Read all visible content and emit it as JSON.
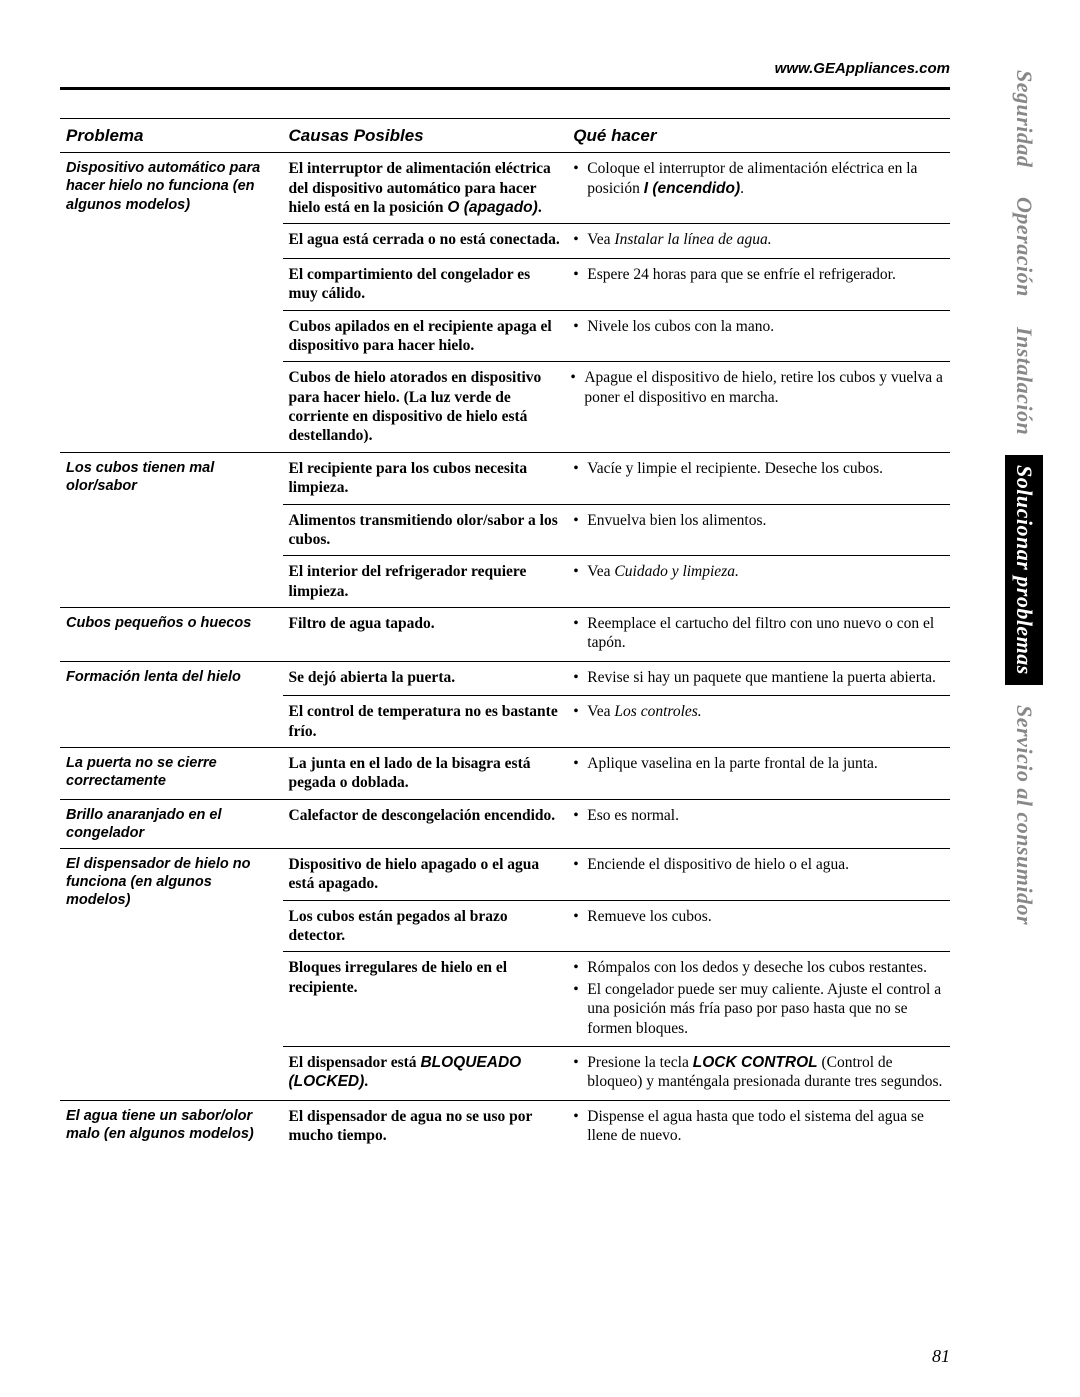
{
  "url": "www.GEAppliances.com",
  "page_number": "81",
  "side_tabs": [
    {
      "label": "Seguridad",
      "style": "gray"
    },
    {
      "label": "Operación",
      "style": "gray"
    },
    {
      "label": "Instalación",
      "style": "gray"
    },
    {
      "label": "Solucionar problemas",
      "style": "inverse"
    },
    {
      "label": "Servicio al consumidor",
      "style": "gray"
    }
  ],
  "headers": {
    "problem": "Problema",
    "cause": "Causas Posibles",
    "action": "Qué hacer"
  },
  "sections": [
    {
      "problem": "Dispositivo automático para hacer hielo no funciona (en algunos modelos)",
      "rows": [
        {
          "cause_html": "El interruptor de alimentación eléctrica del dispositivo automático para hacer hielo está en la posición <span class='bold-sans-it'>O (apagado)</span>.",
          "actions_html": [
            "Coloque el interruptor de alimentación eléctrica en la posición <span class='bold-sans-it'>I (encendido)</span>."
          ]
        },
        {
          "cause_html": "El agua está cerrada o no está conectada.",
          "actions_html": [
            "Vea <span class='it'>Instalar la línea de agua.</span>"
          ]
        },
        {
          "cause_html": "El compartimiento del congelador es muy cálido.",
          "actions_html": [
            "Espere 24 horas para que se enfríe el refrigerador."
          ]
        },
        {
          "cause_html": "Cubos apilados en el recipiente apaga el dispositivo para hacer hielo.",
          "actions_html": [
            "Nivele los cubos con la mano."
          ]
        },
        {
          "cause_html": "Cubos de hielo atorados en dispositivo para hacer hielo. (La luz verde de corriente en dispositivo de hielo está destellando).",
          "actions_html": [
            "Apague el dispositivo de hielo, retire los cubos y vuelva a poner el dispositivo en marcha."
          ],
          "cause_span": true
        }
      ]
    },
    {
      "problem": "Los cubos tienen mal olor/sabor",
      "rows": [
        {
          "cause_html": "El recipiente para los cubos necesita limpieza.",
          "actions_html": [
            "Vacíe y limpie el recipiente. Deseche los cubos."
          ]
        },
        {
          "cause_html": "Alimentos transmitiendo olor/sabor a los cubos.",
          "actions_html": [
            "Envuelva bien los alimentos."
          ]
        },
        {
          "cause_html": "El interior del refrigerador requiere limpieza.",
          "actions_html": [
            "Vea <span class='it'>Cuidado y limpieza.</span>"
          ]
        }
      ]
    },
    {
      "problem": "Cubos pequeños o huecos",
      "rows": [
        {
          "cause_html": "Filtro de agua tapado.",
          "actions_html": [
            "Reemplace el cartucho del filtro con uno nuevo o con el tapón."
          ]
        }
      ]
    },
    {
      "problem": "Formación lenta del hielo",
      "rows": [
        {
          "cause_html": "Se dejó abierta la puerta.",
          "actions_html": [
            "Revise si hay un paquete que mantiene la puerta abierta."
          ]
        },
        {
          "cause_html": "El control de temperatura no es bastante frío.",
          "actions_html": [
            "Vea <span class='it'>Los controles.</span>"
          ]
        }
      ]
    },
    {
      "problem": "La puerta no se cierre correctamente",
      "rows": [
        {
          "cause_html": "La junta en el lado de la bisagra está pegada o doblada.",
          "actions_html": [
            "Aplique vaselina en la parte frontal de la junta."
          ]
        }
      ]
    },
    {
      "problem": "Brillo anaranjado en el congelador",
      "rows": [
        {
          "cause_html": "Calefactor de descongelación encendido.",
          "actions_html": [
            "Eso es normal."
          ]
        }
      ]
    },
    {
      "problem": "El dispensador de hielo no funciona (en algunos modelos)",
      "rows": [
        {
          "cause_html": "Dispositivo de hielo apagado o el agua está apagado.",
          "actions_html": [
            "Enciende el dispositivo de hielo o el agua."
          ]
        },
        {
          "cause_html": "Los cubos están pegados al brazo detector.",
          "actions_html": [
            "Remueve los cubos."
          ]
        },
        {
          "cause_html": "Bloques irregulares de hielo en el recipiente.",
          "actions_html": [
            "Rómpalos con los dedos y deseche los cubos restantes.",
            "El congelador puede ser muy caliente. Ajuste el control a una posición más fría paso por paso hasta que no se formen bloques."
          ]
        },
        {
          "cause_html": "El dispensador está <span class='bold-sans-it'>BLOQUEADO (LOCKED)</span>.",
          "actions_html": [
            "Presione la tecla <span class='bold-sans-it'>LOCK CONTROL</span> (Control de bloqueo) y manténgala presionada durante tres segundos."
          ]
        }
      ]
    },
    {
      "problem": "El agua tiene un sabor/olor malo (en algunos modelos)",
      "rows": [
        {
          "cause_html": "El dispensador de agua no se uso por mucho tiempo.",
          "actions_html": [
            "Dispense el agua hasta que todo el sistema del agua se llene de nuevo."
          ]
        }
      ]
    }
  ]
}
